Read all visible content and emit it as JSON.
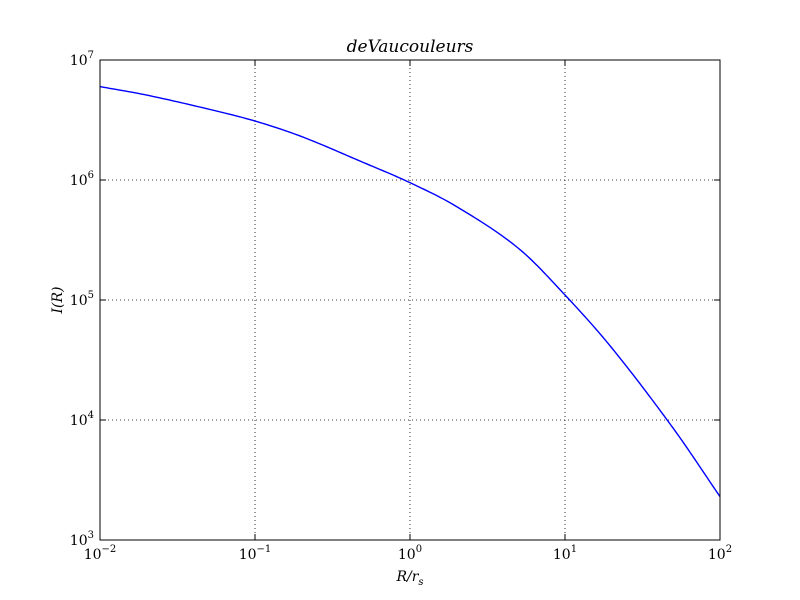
{
  "chart_data": {
    "type": "line",
    "title": "deVaucouleurs",
    "xlabel": "R/r",
    "xlabel_sub": "s",
    "ylabel": "I(R)",
    "x_scale": "log",
    "y_scale": "log",
    "xlim": [
      0.01,
      100
    ],
    "ylim": [
      1000,
      10000000
    ],
    "grid": true,
    "x_ticks": [
      {
        "base": "10",
        "exp": "−2",
        "value": 0.01
      },
      {
        "base": "10",
        "exp": "−1",
        "value": 0.1
      },
      {
        "base": "10",
        "exp": "0",
        "value": 1
      },
      {
        "base": "10",
        "exp": "1",
        "value": 10
      },
      {
        "base": "10",
        "exp": "2",
        "value": 100
      }
    ],
    "y_ticks": [
      {
        "base": "10",
        "exp": "3",
        "value": 1000
      },
      {
        "base": "10",
        "exp": "4",
        "value": 10000
      },
      {
        "base": "10",
        "exp": "5",
        "value": 100000
      },
      {
        "base": "10",
        "exp": "6",
        "value": 1000000
      },
      {
        "base": "10",
        "exp": "7",
        "value": 10000000
      }
    ],
    "series": [
      {
        "color": "#0000ff",
        "x": [
          0.01,
          0.02,
          0.05,
          0.1,
          0.2,
          0.5,
          1,
          2,
          5,
          10,
          20,
          50,
          100
        ],
        "y": [
          6000000,
          5100000,
          3900000,
          3100000,
          2300000,
          1400000,
          950000,
          600000,
          270000,
          110000,
          40000,
          8500,
          2300
        ]
      }
    ]
  }
}
